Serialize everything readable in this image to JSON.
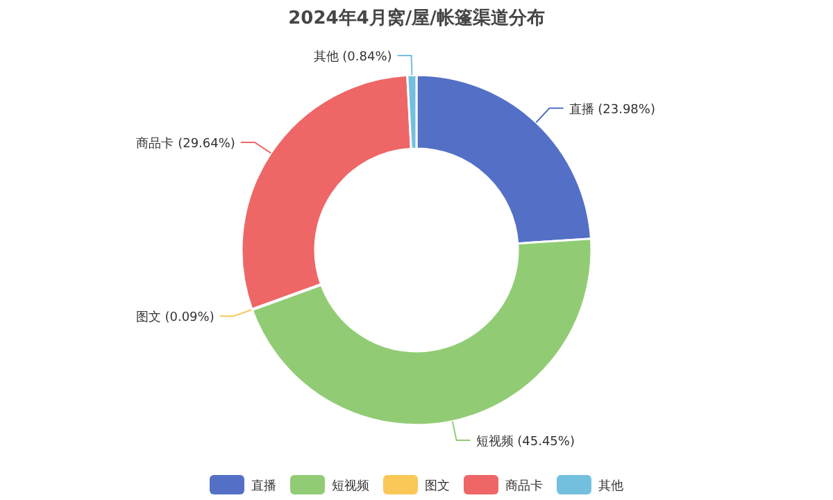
{
  "chart_data": {
    "type": "donut",
    "title": "2024年4月窝/屋/帐篷渠道分布",
    "categories": [
      "直播",
      "短视频",
      "图文",
      "商品卡",
      "其他"
    ],
    "values": [
      23.98,
      45.45,
      0.09,
      29.64,
      0.84
    ],
    "colors": [
      "#5470c6",
      "#91cc75",
      "#fac858",
      "#ee6666",
      "#73c0de"
    ],
    "value_labels": [
      "直播 (23.98%)",
      "短视频 (45.45%)",
      "图文 (0.09%)",
      "商品卡 (29.64%)",
      "其他 (0.84%)"
    ],
    "legend": "bottom"
  }
}
